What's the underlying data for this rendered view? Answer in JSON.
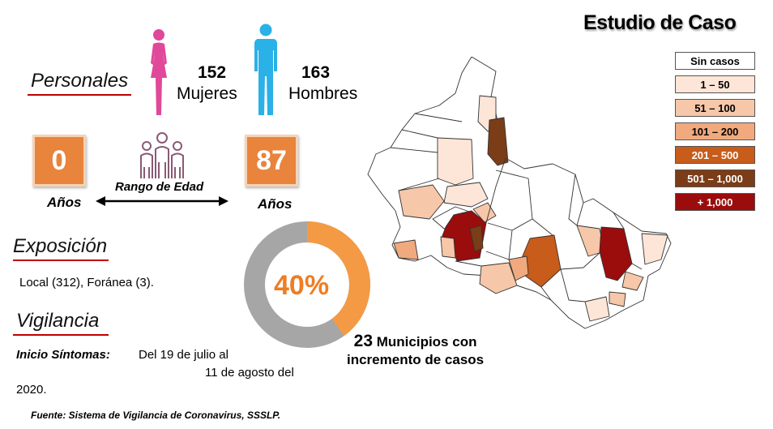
{
  "title": "Estudio de Caso",
  "personales": {
    "heading": "Personales",
    "women": {
      "count": "152",
      "label": "Mujeres",
      "icon": "female-figure-icon",
      "color": "#e0489a"
    },
    "men": {
      "count": "163",
      "label": "Hombres",
      "icon": "male-figure-icon",
      "color": "#2ab1e8"
    }
  },
  "age": {
    "min_value": "0",
    "min_label": "Años",
    "max_value": "87",
    "max_label": "Años",
    "range_label": "Rango de Edad",
    "icon": "group-people-icon",
    "box_color": "#e8843c"
  },
  "exposicion": {
    "heading": "Exposición",
    "text": "Local (312), Foránea (3)."
  },
  "vigilancia": {
    "heading": "Vigilancia",
    "label": "Inicio Síntomas:",
    "line1": "Del 19 de julio al",
    "line2": "11 de agosto del",
    "line3": "2020."
  },
  "donut": {
    "percent_label": "40%",
    "value": 40,
    "fill_color": "#f49a44",
    "rest_color": "#a6a6a6"
  },
  "municipios": {
    "number": "23",
    "line1": "Municipios con",
    "line2": "incremento de casos"
  },
  "legend": [
    {
      "label": "Sin casos",
      "color": "#ffffff",
      "text_color": "#000000"
    },
    {
      "label": "1 – 50",
      "color": "#fde6d8",
      "text_color": "#000000"
    },
    {
      "label": "51 – 100",
      "color": "#f6c7a8",
      "text_color": "#000000"
    },
    {
      "label": "101 – 200",
      "color": "#f0aa7e",
      "text_color": "#000000"
    },
    {
      "label": "201 – 500",
      "color": "#c75c1b",
      "text_color": "#ffffff"
    },
    {
      "label": "501 – 1,000",
      "color": "#7a3d17",
      "text_color": "#ffffff"
    },
    {
      "label": "+ 1,000",
      "color": "#9b0c0c",
      "text_color": "#ffffff"
    }
  ],
  "source": "Fuente: Sistema de Vigilancia de Coronavirus, SSSLP."
}
